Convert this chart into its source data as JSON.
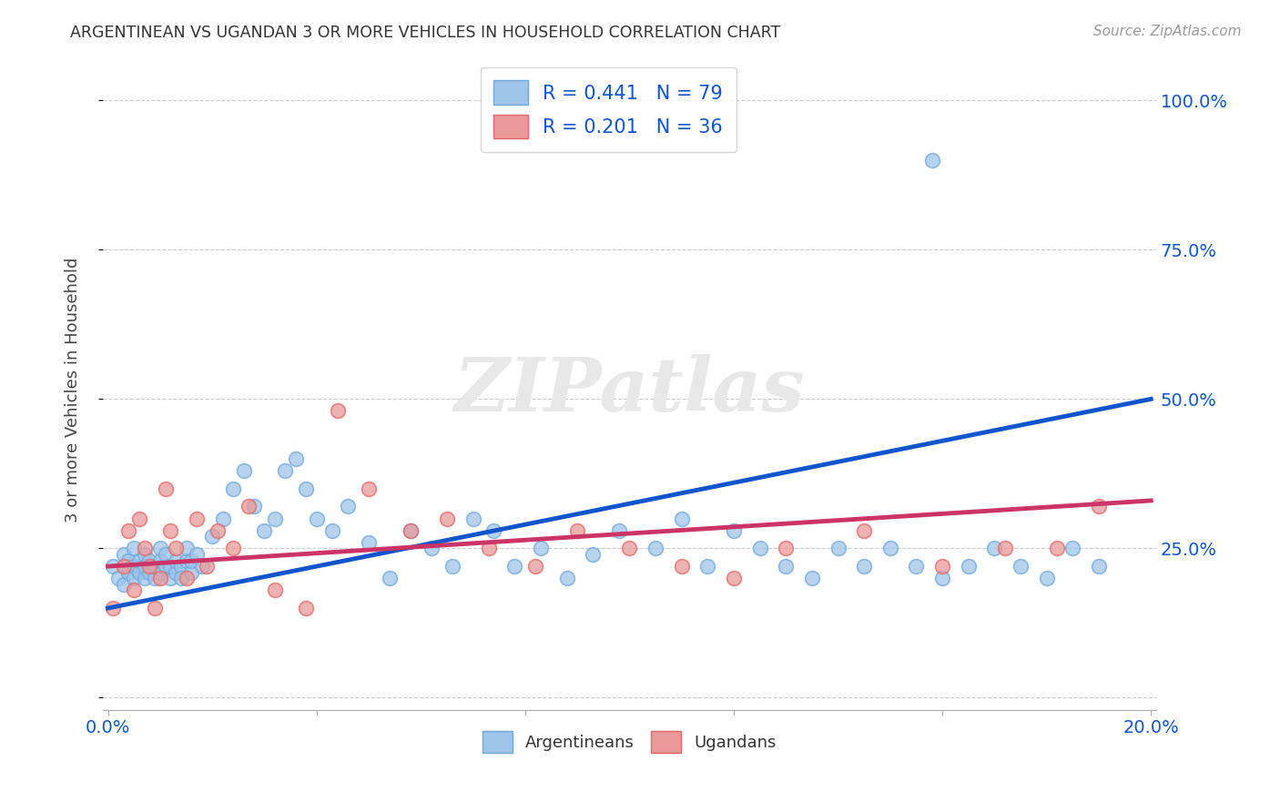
{
  "title": "ARGENTINEAN VS UGANDAN 3 OR MORE VEHICLES IN HOUSEHOLD CORRELATION CHART",
  "source": "Source: ZipAtlas.com",
  "ylabel": "3 or more Vehicles in Household",
  "xlim": [
    0.0,
    0.2
  ],
  "ylim": [
    0.0,
    1.05
  ],
  "x_tick_positions": [
    0.0,
    0.04,
    0.08,
    0.12,
    0.16,
    0.2
  ],
  "x_tick_labels": [
    "0.0%",
    "",
    "",
    "",
    "",
    "20.0%"
  ],
  "y_tick_positions": [
    0.0,
    0.25,
    0.5,
    0.75,
    1.0
  ],
  "y_tick_labels_right": [
    "",
    "25.0%",
    "50.0%",
    "75.0%",
    "100.0%"
  ],
  "argentina_R": 0.441,
  "argentina_N": 79,
  "uganda_R": 0.201,
  "uganda_N": 36,
  "argentina_color": "#9fc5e8",
  "uganda_color": "#ea9999",
  "argentina_scatter_color": "#6fa8dc",
  "uganda_scatter_color": "#e06666",
  "argentina_line_color": "#1155cc",
  "uganda_line_color": "#cc3366",
  "legend_arg_label": "R = 0.441   N = 79",
  "legend_uga_label": "R = 0.201   N = 36",
  "legend_argentineans": "Argentineans",
  "legend_ugandans": "Ugandans",
  "watermark_text": "ZIPatlas",
  "arg_line_x0": 0.0,
  "arg_line_y0": 0.15,
  "arg_line_x1": 0.2,
  "arg_line_y1": 0.5,
  "uga_line_x0": 0.0,
  "uga_line_y0": 0.22,
  "uga_line_x1": 0.2,
  "uga_line_y1": 0.33,
  "argentina_x": [
    0.001,
    0.002,
    0.003,
    0.003,
    0.004,
    0.004,
    0.005,
    0.005,
    0.005,
    0.006,
    0.006,
    0.007,
    0.007,
    0.007,
    0.008,
    0.008,
    0.009,
    0.009,
    0.01,
    0.01,
    0.01,
    0.011,
    0.011,
    0.012,
    0.012,
    0.013,
    0.013,
    0.014,
    0.014,
    0.015,
    0.015,
    0.016,
    0.016,
    0.017,
    0.018,
    0.02,
    0.022,
    0.024,
    0.026,
    0.028,
    0.03,
    0.032,
    0.034,
    0.036,
    0.038,
    0.04,
    0.043,
    0.046,
    0.05,
    0.054,
    0.058,
    0.062,
    0.066,
    0.07,
    0.074,
    0.078,
    0.083,
    0.088,
    0.093,
    0.098,
    0.105,
    0.11,
    0.115,
    0.12,
    0.125,
    0.13,
    0.135,
    0.14,
    0.145,
    0.15,
    0.155,
    0.16,
    0.165,
    0.17,
    0.175,
    0.18,
    0.185,
    0.19,
    0.158
  ],
  "argentina_y": [
    0.22,
    0.2,
    0.24,
    0.19,
    0.21,
    0.23,
    0.22,
    0.2,
    0.25,
    0.21,
    0.23,
    0.2,
    0.22,
    0.24,
    0.21,
    0.23,
    0.2,
    0.22,
    0.21,
    0.23,
    0.25,
    0.22,
    0.24,
    0.2,
    0.22,
    0.21,
    0.23,
    0.22,
    0.2,
    0.23,
    0.25,
    0.21,
    0.23,
    0.24,
    0.22,
    0.27,
    0.3,
    0.35,
    0.38,
    0.32,
    0.28,
    0.3,
    0.38,
    0.4,
    0.35,
    0.3,
    0.28,
    0.32,
    0.26,
    0.2,
    0.28,
    0.25,
    0.22,
    0.3,
    0.28,
    0.22,
    0.25,
    0.2,
    0.24,
    0.28,
    0.25,
    0.3,
    0.22,
    0.28,
    0.25,
    0.22,
    0.2,
    0.25,
    0.22,
    0.25,
    0.22,
    0.2,
    0.22,
    0.25,
    0.22,
    0.2,
    0.25,
    0.22,
    0.9
  ],
  "uganda_x": [
    0.001,
    0.003,
    0.004,
    0.005,
    0.006,
    0.007,
    0.008,
    0.009,
    0.01,
    0.011,
    0.012,
    0.013,
    0.015,
    0.017,
    0.019,
    0.021,
    0.024,
    0.027,
    0.032,
    0.038,
    0.044,
    0.05,
    0.058,
    0.065,
    0.073,
    0.082,
    0.09,
    0.1,
    0.11,
    0.12,
    0.13,
    0.145,
    0.16,
    0.172,
    0.182,
    0.19
  ],
  "uganda_y": [
    0.15,
    0.22,
    0.28,
    0.18,
    0.3,
    0.25,
    0.22,
    0.15,
    0.2,
    0.35,
    0.28,
    0.25,
    0.2,
    0.3,
    0.22,
    0.28,
    0.25,
    0.32,
    0.18,
    0.15,
    0.48,
    0.35,
    0.28,
    0.3,
    0.25,
    0.22,
    0.28,
    0.25,
    0.22,
    0.2,
    0.25,
    0.28,
    0.22,
    0.25,
    0.25,
    0.32
  ]
}
